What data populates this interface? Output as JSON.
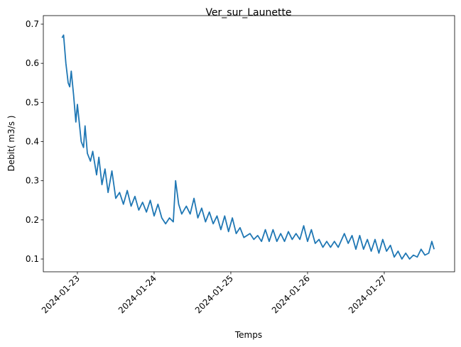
{
  "chart_data": {
    "type": "line",
    "title": "Ver_sur_Launette",
    "x_label": "Temps",
    "y_label": "Debit( m3/s )",
    "color": "#1f77b4",
    "x": [
      22.8,
      22.82,
      22.85,
      22.88,
      22.9,
      22.92,
      22.95,
      22.98,
      23.0,
      23.05,
      23.08,
      23.1,
      23.13,
      23.17,
      23.2,
      23.25,
      23.28,
      23.32,
      23.36,
      23.4,
      23.45,
      23.5,
      23.55,
      23.6,
      23.65,
      23.7,
      23.75,
      23.8,
      23.85,
      23.9,
      23.95,
      24.0,
      24.05,
      24.1,
      24.15,
      24.2,
      24.25,
      24.28,
      24.32,
      24.36,
      24.42,
      24.47,
      24.52,
      24.57,
      24.62,
      24.67,
      24.72,
      24.77,
      24.82,
      24.87,
      24.92,
      24.97,
      25.02,
      25.07,
      25.12,
      25.17,
      25.25,
      25.3,
      25.35,
      25.4,
      25.45,
      25.5,
      25.55,
      25.6,
      25.65,
      25.7,
      25.75,
      25.8,
      25.85,
      25.9,
      25.95,
      26.0,
      26.05,
      26.1,
      26.15,
      26.2,
      26.25,
      26.3,
      26.35,
      26.4,
      26.48,
      26.53,
      26.58,
      26.63,
      26.68,
      26.73,
      26.78,
      26.83,
      26.88,
      26.93,
      26.98,
      27.03,
      27.08,
      27.13,
      27.18,
      27.23,
      27.28,
      27.33,
      27.38,
      27.43,
      27.48,
      27.53,
      27.58,
      27.62,
      27.65
    ],
    "values": [
      0.665,
      0.672,
      0.6,
      0.55,
      0.54,
      0.58,
      0.52,
      0.45,
      0.495,
      0.4,
      0.385,
      0.44,
      0.37,
      0.35,
      0.375,
      0.315,
      0.36,
      0.29,
      0.33,
      0.27,
      0.325,
      0.255,
      0.27,
      0.24,
      0.275,
      0.235,
      0.26,
      0.225,
      0.245,
      0.22,
      0.25,
      0.21,
      0.24,
      0.205,
      0.19,
      0.205,
      0.195,
      0.3,
      0.24,
      0.215,
      0.235,
      0.215,
      0.255,
      0.205,
      0.23,
      0.195,
      0.22,
      0.19,
      0.21,
      0.175,
      0.21,
      0.17,
      0.205,
      0.165,
      0.18,
      0.155,
      0.165,
      0.15,
      0.16,
      0.145,
      0.175,
      0.145,
      0.175,
      0.145,
      0.165,
      0.145,
      0.17,
      0.15,
      0.165,
      0.15,
      0.185,
      0.145,
      0.175,
      0.14,
      0.15,
      0.13,
      0.145,
      0.13,
      0.145,
      0.13,
      0.165,
      0.14,
      0.16,
      0.125,
      0.16,
      0.125,
      0.15,
      0.12,
      0.15,
      0.115,
      0.15,
      0.12,
      0.135,
      0.105,
      0.12,
      0.1,
      0.115,
      0.1,
      0.11,
      0.105,
      0.125,
      0.11,
      0.115,
      0.145,
      0.125
    ],
    "xlim": [
      22.556,
      27.917
    ],
    "xticks": [
      {
        "value": 23,
        "label": "2024-01-23"
      },
      {
        "value": 24,
        "label": "2024-01-24"
      },
      {
        "value": 25,
        "label": "2024-01-25"
      },
      {
        "value": 26,
        "label": "2024-01-26"
      },
      {
        "value": 27,
        "label": "2024-01-27"
      }
    ],
    "ylim": [
      0.0674,
      0.7218
    ],
    "yticks": [
      0.1,
      0.2,
      0.3,
      0.4,
      0.5,
      0.6,
      0.7
    ]
  }
}
